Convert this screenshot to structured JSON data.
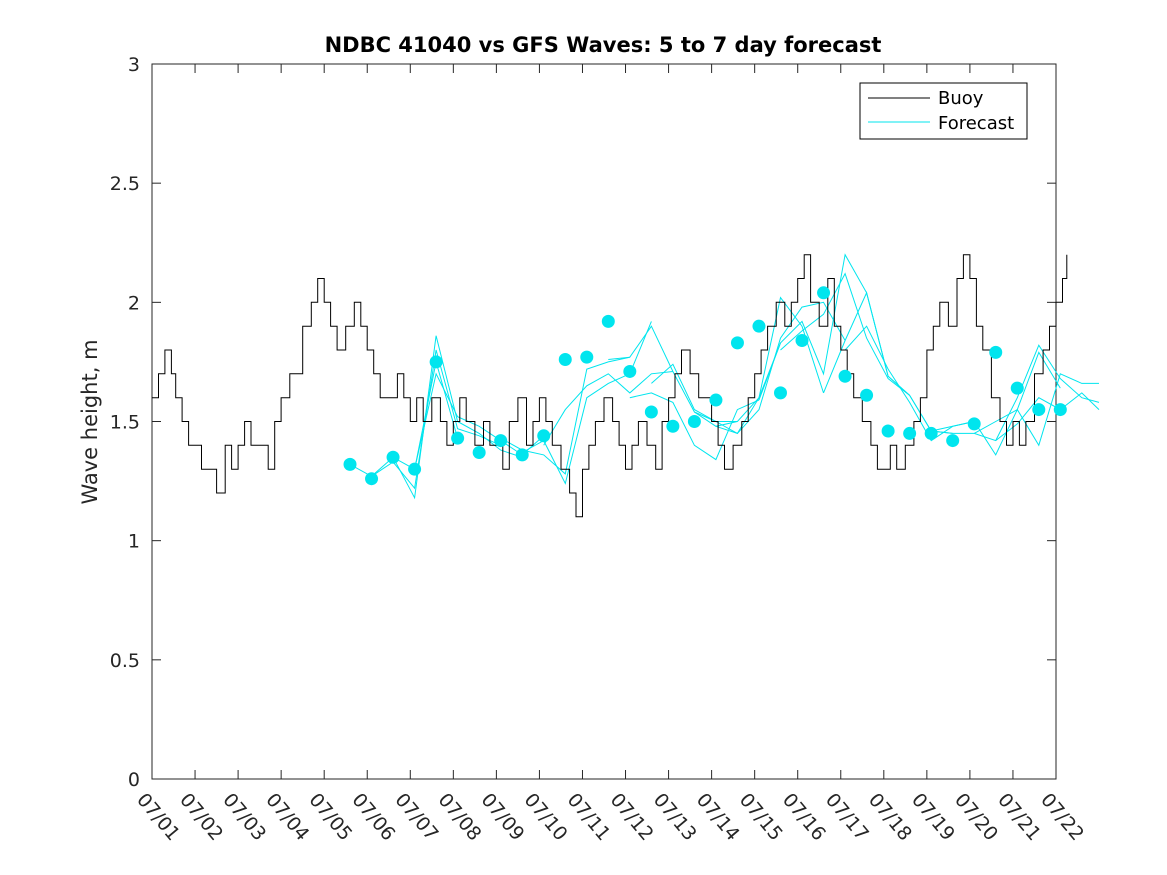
{
  "chart_data": {
    "type": "line",
    "title": "NDBC 41040 vs GFS Waves: 5 to 7 day forecast",
    "xlabel": "",
    "ylabel": "Wave height, m",
    "xlim": [
      "07/01",
      "07/22"
    ],
    "ylim": [
      0,
      3
    ],
    "x_ticks": [
      "07/01",
      "07/02",
      "07/03",
      "07/04",
      "07/05",
      "07/06",
      "07/07",
      "07/08",
      "07/09",
      "07/10",
      "07/11",
      "07/12",
      "07/13",
      "07/14",
      "07/15",
      "07/16",
      "07/17",
      "07/18",
      "07/19",
      "07/20",
      "07/21",
      "07/22"
    ],
    "y_ticks": [
      0,
      0.5,
      1,
      1.5,
      2,
      2.5,
      3
    ],
    "y_tick_labels": [
      "0",
      "0.5",
      "1",
      "1.5",
      "2",
      "2.5",
      "3"
    ],
    "grid": false,
    "legend": {
      "placement": "top-right",
      "entries": [
        "Buoy",
        "Forecast"
      ]
    },
    "colors": {
      "buoy": "#000000",
      "forecast": "#00e5ee"
    },
    "buoy": {
      "name": "Buoy",
      "x_day": [
        0.0,
        0.15,
        0.3,
        0.45,
        0.55,
        0.7,
        0.85,
        1.0,
        1.15,
        1.3,
        1.5,
        1.7,
        1.85,
        2.0,
        2.15,
        2.3,
        2.5,
        2.7,
        2.85,
        3.0,
        3.2,
        3.5,
        3.7,
        3.85,
        4.0,
        4.15,
        4.3,
        4.5,
        4.7,
        4.85,
        5.0,
        5.15,
        5.3,
        5.5,
        5.7,
        5.85,
        6.0,
        6.15,
        6.3,
        6.5,
        6.7,
        6.85,
        7.0,
        7.15,
        7.3,
        7.5,
        7.7,
        7.85,
        8.0,
        8.15,
        8.3,
        8.5,
        8.7,
        8.85,
        9.0,
        9.15,
        9.3,
        9.5,
        9.7,
        9.85,
        10.0,
        10.15,
        10.3,
        10.5,
        10.7,
        10.85,
        11.0,
        11.15,
        11.3,
        11.5,
        11.7,
        11.85,
        12.0,
        12.15,
        12.3,
        12.5,
        12.7,
        12.85,
        13.0,
        13.15,
        13.3,
        13.5,
        13.7,
        13.85,
        14.0,
        14.15,
        14.3,
        14.5,
        14.7,
        14.85,
        15.0,
        15.15,
        15.3,
        15.5,
        15.7,
        15.85,
        16.0,
        16.15,
        16.3,
        16.5,
        16.7,
        16.85,
        17.0,
        17.15,
        17.3,
        17.5,
        17.7,
        17.85,
        18.0,
        18.15,
        18.3,
        18.5,
        18.7,
        18.85,
        19.0,
        19.15,
        19.3,
        19.5,
        19.7,
        19.85,
        20.0,
        20.15,
        20.3,
        20.5,
        20.7,
        20.85,
        21.0,
        21.15,
        21.25
      ],
      "values": [
        1.6,
        1.7,
        1.8,
        1.7,
        1.6,
        1.5,
        1.4,
        1.4,
        1.3,
        1.3,
        1.2,
        1.4,
        1.3,
        1.4,
        1.5,
        1.4,
        1.4,
        1.3,
        1.5,
        1.6,
        1.7,
        1.9,
        2.0,
        2.1,
        2.0,
        1.9,
        1.8,
        1.9,
        2.0,
        1.9,
        1.8,
        1.7,
        1.6,
        1.6,
        1.7,
        1.6,
        1.5,
        1.6,
        1.5,
        1.6,
        1.5,
        1.4,
        1.5,
        1.6,
        1.5,
        1.4,
        1.5,
        1.4,
        1.4,
        1.3,
        1.5,
        1.6,
        1.4,
        1.5,
        1.6,
        1.5,
        1.4,
        1.3,
        1.2,
        1.1,
        1.3,
        1.4,
        1.5,
        1.6,
        1.5,
        1.4,
        1.3,
        1.4,
        1.5,
        1.4,
        1.3,
        1.5,
        1.6,
        1.7,
        1.8,
        1.7,
        1.6,
        1.6,
        1.5,
        1.4,
        1.3,
        1.4,
        1.5,
        1.6,
        1.7,
        1.8,
        1.9,
        2.0,
        1.9,
        2.0,
        2.1,
        2.2,
        2.0,
        1.9,
        2.1,
        1.9,
        1.8,
        1.7,
        1.6,
        1.5,
        1.4,
        1.3,
        1.3,
        1.4,
        1.3,
        1.4,
        1.5,
        1.6,
        1.8,
        1.9,
        2.0,
        1.9,
        2.1,
        2.2,
        2.1,
        1.9,
        1.8,
        1.6,
        1.5,
        1.4,
        1.5,
        1.4,
        1.5,
        1.7,
        1.8,
        1.9,
        2.0,
        2.1,
        2.2
      ],
      "values_note": ""
    },
    "forecast_runs": [
      {
        "x_day": [
          4.6,
          5.1,
          5.6,
          6.1,
          6.6,
          7.1
        ],
        "values": [
          1.32,
          1.27,
          1.35,
          1.3,
          1.75,
          1.43
        ]
      },
      {
        "x_day": [
          5.1,
          5.6,
          6.1,
          6.6,
          7.1,
          7.6,
          8.1
        ],
        "values": [
          1.27,
          1.33,
          1.22,
          1.8,
          1.47,
          1.44,
          1.4
        ]
      },
      {
        "x_day": [
          5.6,
          6.1,
          6.6,
          7.1,
          7.6,
          8.1,
          8.6
        ],
        "values": [
          1.35,
          1.18,
          1.86,
          1.5,
          1.45,
          1.38,
          1.35
        ]
      },
      {
        "x_day": [
          6.1,
          6.6,
          7.1,
          7.6,
          8.1,
          8.6,
          9.1
        ],
        "values": [
          1.3,
          1.7,
          1.52,
          1.48,
          1.42,
          1.36,
          1.44
        ]
      },
      {
        "x_day": [
          8.1,
          8.6,
          9.1,
          9.6,
          10.1,
          10.6,
          11.1
        ],
        "values": [
          1.43,
          1.38,
          1.36,
          1.28,
          1.72,
          1.75,
          1.77
        ]
      },
      {
        "x_day": [
          8.6,
          9.1,
          9.6,
          10.1,
          10.6,
          11.1,
          11.6
        ],
        "values": [
          1.37,
          1.42,
          1.24,
          1.6,
          1.66,
          1.7,
          1.92
        ]
      },
      {
        "x_day": [
          9.1,
          9.6,
          10.1,
          10.6,
          11.1,
          11.6,
          12.1
        ],
        "values": [
          1.4,
          1.55,
          1.65,
          1.7,
          1.62,
          1.7,
          1.71
        ]
      },
      {
        "x_day": [
          10.6,
          11.1,
          11.6,
          12.1,
          12.6,
          13.1,
          13.6
        ],
        "values": [
          1.76,
          1.77,
          1.9,
          1.71,
          1.54,
          1.48,
          1.5
        ]
      },
      {
        "x_day": [
          11.1,
          11.6,
          12.1,
          12.6,
          13.1,
          13.6,
          14.1
        ],
        "values": [
          1.6,
          1.62,
          1.58,
          1.4,
          1.34,
          1.55,
          1.59
        ]
      },
      {
        "x_day": [
          11.6,
          12.1,
          12.6,
          13.1,
          13.6,
          14.1,
          14.6
        ],
        "values": [
          1.66,
          1.74,
          1.55,
          1.5,
          1.45,
          1.6,
          1.83
        ]
      },
      {
        "x_day": [
          12.6,
          13.1,
          13.6,
          14.1,
          14.6,
          15.1,
          15.6
        ],
        "values": [
          1.54,
          1.5,
          1.5,
          1.6,
          2.02,
          1.9,
          1.62
        ]
      },
      {
        "x_day": [
          13.1,
          13.6,
          14.1,
          14.6,
          15.1,
          15.6,
          16.1
        ],
        "values": [
          1.48,
          1.45,
          1.55,
          1.85,
          1.98,
          2.0,
          1.84
        ]
      },
      {
        "x_day": [
          14.1,
          14.6,
          15.1,
          15.6,
          16.1,
          16.6,
          17.1
        ],
        "values": [
          1.59,
          1.83,
          1.92,
          1.7,
          2.2,
          2.04,
          1.69
        ]
      },
      {
        "x_day": [
          14.6,
          15.1,
          15.6,
          16.1,
          16.6,
          17.1,
          17.6
        ],
        "values": [
          1.8,
          1.88,
          1.95,
          2.12,
          1.85,
          1.68,
          1.61
        ]
      },
      {
        "x_day": [
          15.6,
          16.1,
          16.6,
          17.1,
          17.6,
          18.1,
          18.6
        ],
        "values": [
          1.62,
          1.84,
          2.04,
          1.69,
          1.61,
          1.46,
          1.45
        ]
      },
      {
        "x_day": [
          16.1,
          16.6,
          17.1,
          17.6,
          18.1,
          18.6,
          19.1
        ],
        "values": [
          1.8,
          1.9,
          1.72,
          1.58,
          1.42,
          1.48,
          1.5
        ]
      },
      {
        "x_day": [
          17.1,
          17.6,
          18.1,
          18.6,
          19.1,
          19.6,
          20.1
        ],
        "values": [
          1.69,
          1.61,
          1.46,
          1.45,
          1.45,
          1.42,
          1.49
        ]
      },
      {
        "x_day": [
          18.1,
          18.6,
          19.1,
          19.6,
          20.1,
          20.6,
          21.1
        ],
        "values": [
          1.46,
          1.48,
          1.5,
          1.36,
          1.55,
          1.79,
          1.64
        ]
      },
      {
        "x_day": [
          19.1,
          19.6,
          20.1,
          20.6,
          21.1,
          21.6,
          22.0
        ],
        "values": [
          1.45,
          1.5,
          1.55,
          1.4,
          1.7,
          1.66,
          1.66
        ]
      },
      {
        "x_day": [
          19.6,
          20.1,
          20.6,
          21.1,
          21.6,
          22.0
        ],
        "values": [
          1.42,
          1.6,
          1.82,
          1.68,
          1.6,
          1.58
        ]
      },
      {
        "x_day": [
          20.1,
          20.6,
          21.1,
          21.6,
          22.0
        ],
        "values": [
          1.49,
          1.6,
          1.55,
          1.62,
          1.55
        ]
      }
    ],
    "forecast_points": {
      "x_day": [
        4.6,
        5.1,
        5.6,
        6.1,
        6.6,
        7.1,
        7.6,
        8.1,
        8.6,
        9.1,
        9.6,
        10.1,
        10.6,
        11.1,
        11.6,
        12.1,
        12.6,
        13.1,
        13.6,
        14.1,
        14.6,
        15.1,
        15.6,
        16.1,
        16.6,
        17.1,
        17.6,
        18.1,
        18.6,
        19.1,
        19.6,
        20.1,
        20.6,
        21.1
      ],
      "values": [
        1.32,
        1.26,
        1.35,
        1.3,
        1.75,
        1.43,
        1.37,
        1.42,
        1.36,
        1.44,
        1.76,
        1.77,
        1.92,
        1.71,
        1.54,
        1.48,
        1.5,
        1.59,
        1.83,
        1.9,
        1.62,
        1.84,
        2.04,
        1.69,
        1.61,
        1.46,
        1.45,
        1.45,
        1.42,
        1.49,
        1.79,
        1.64,
        1.55,
        1.55
      ]
    }
  }
}
